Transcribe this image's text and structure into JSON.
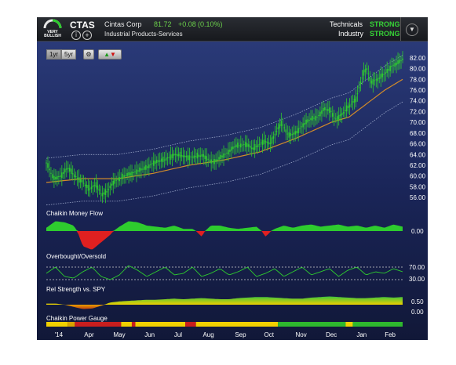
{
  "header": {
    "rating_label": "VERY BULLISH",
    "ticker": "CTAS",
    "company": "Cintas Corp",
    "price": "81.72",
    "change": "+0.08",
    "change_pct": "(0.10%)",
    "sector": "Industrial Products-Services",
    "technicals_label": "Technicals",
    "technicals_value": "STRONG",
    "industry_label": "Industry",
    "industry_value": "STRONG",
    "info_icon": "info-icon",
    "add_icon": "add-icon",
    "dropdown_icon": "chevron-down-icon"
  },
  "controls": {
    "range_1yr": "1yr",
    "range_5yr": "5yr",
    "settings_icon": "gear-icon",
    "arrows_icon": "up-down-arrows-icon"
  },
  "colors": {
    "bg": "#1a2558",
    "up": "#2ecc2e",
    "down": "#e02020",
    "sma": "#d08a2a",
    "band": "#9aa6c8"
  },
  "chart_data": [
    {
      "type": "candlestick",
      "y_ticks": [
        "82.00",
        "80.00",
        "78.00",
        "76.00",
        "74.00",
        "72.00",
        "70.00",
        "68.00",
        "66.00",
        "64.00",
        "62.00",
        "60.00",
        "58.00",
        "56.00"
      ],
      "ylim": [
        55,
        83
      ],
      "price_path": [
        [
          0,
          62.5
        ],
        [
          0.02,
          59.5
        ],
        [
          0.04,
          60
        ],
        [
          0.06,
          61.5
        ],
        [
          0.08,
          60
        ],
        [
          0.1,
          59
        ],
        [
          0.12,
          57.5
        ],
        [
          0.14,
          58.5
        ],
        [
          0.155,
          56.5
        ],
        [
          0.17,
          57
        ],
        [
          0.19,
          59
        ],
        [
          0.22,
          60
        ],
        [
          0.25,
          60.8
        ],
        [
          0.28,
          61.5
        ],
        [
          0.3,
          62.5
        ],
        [
          0.33,
          63
        ],
        [
          0.36,
          64
        ],
        [
          0.4,
          63.5
        ],
        [
          0.44,
          63.8
        ],
        [
          0.47,
          62.5
        ],
        [
          0.5,
          64
        ],
        [
          0.53,
          65.5
        ],
        [
          0.56,
          66
        ],
        [
          0.58,
          65
        ],
        [
          0.61,
          66.5
        ],
        [
          0.63,
          66
        ],
        [
          0.64,
          67.5
        ],
        [
          0.66,
          70
        ],
        [
          0.68,
          67.5
        ],
        [
          0.7,
          68
        ],
        [
          0.72,
          69.5
        ],
        [
          0.74,
          70.5
        ],
        [
          0.76,
          71
        ],
        [
          0.78,
          72.5
        ],
        [
          0.8,
          72
        ],
        [
          0.81,
          70.5
        ],
        [
          0.83,
          71.5
        ],
        [
          0.85,
          73
        ],
        [
          0.87,
          74.5
        ],
        [
          0.88,
          77
        ],
        [
          0.89,
          79
        ],
        [
          0.9,
          80
        ],
        [
          0.91,
          77.5
        ],
        [
          0.93,
          78
        ],
        [
          0.95,
          79
        ],
        [
          0.97,
          80.5
        ],
        [
          0.99,
          81.2
        ],
        [
          1,
          81.7
        ]
      ],
      "sma_path": [
        [
          0,
          58.8
        ],
        [
          0.1,
          59.5
        ],
        [
          0.2,
          59.5
        ],
        [
          0.3,
          60.5
        ],
        [
          0.4,
          62
        ],
        [
          0.5,
          63
        ],
        [
          0.6,
          64.5
        ],
        [
          0.7,
          67
        ],
        [
          0.8,
          70
        ],
        [
          0.85,
          71
        ],
        [
          0.9,
          73.5
        ],
        [
          0.95,
          76
        ],
        [
          1,
          78
        ]
      ]
    },
    {
      "type": "area",
      "title": "Chaikin Money Flow",
      "y_ticks": [
        "0.00"
      ],
      "values": [
        0.3,
        0.9,
        0.8,
        0.5,
        -0.8,
        -1,
        -0.6,
        -0.2,
        0.4,
        0.9,
        0.8,
        0.5,
        0.4,
        0.3,
        0.5,
        0.2,
        0.2,
        -0.3,
        0.5,
        0.5,
        0.3,
        0.2,
        0.3,
        0.4,
        -0.3,
        0.2,
        0.5,
        0.3,
        0.5,
        0.6,
        0.4,
        0.5,
        0.6,
        0.4,
        0.5,
        0.3,
        0.5,
        0.3,
        0.6,
        0.4
      ]
    },
    {
      "type": "line",
      "title": "Overbought/Oversold",
      "y_ticks": [
        "70.00",
        "30.00"
      ],
      "values": [
        50,
        70,
        40,
        35,
        55,
        70,
        40,
        30,
        45,
        75,
        60,
        40,
        55,
        70,
        45,
        50,
        70,
        40,
        50,
        65,
        45,
        55,
        70,
        40,
        50,
        65,
        40,
        55,
        70,
        45,
        55,
        65,
        40,
        60,
        70,
        45,
        55,
        50,
        65,
        55
      ]
    },
    {
      "type": "area",
      "title": "Rel Strength vs. SPY",
      "y_ticks": [
        "0.50",
        "0.00"
      ],
      "values": [
        0.1,
        0.1,
        0,
        -0.2,
        -0.4,
        -0.35,
        -0.1,
        0.2,
        0.3,
        0.35,
        0.4,
        0.45,
        0.45,
        0.5,
        0.55,
        0.5,
        0.55,
        0.6,
        0.55,
        0.5,
        0.5,
        0.6,
        0.65,
        0.7,
        0.7,
        0.65,
        0.6,
        0.55,
        0.55,
        0.65,
        0.7,
        0.75,
        0.7,
        0.65,
        0.6,
        0.6,
        0.65,
        0.7,
        0.65,
        0.7
      ]
    },
    {
      "type": "bar",
      "title": "Chaikin Power Gauge",
      "segments": [
        [
          "#f0d000",
          0.06
        ],
        [
          "#d8a400",
          0.02
        ],
        [
          "#c81e1e",
          0.13
        ],
        [
          "#f0d000",
          0.03
        ],
        [
          "#c81e1e",
          0.01
        ],
        [
          "#f0d000",
          0.14
        ],
        [
          "#c81e1e",
          0.03
        ],
        [
          "#f0d000",
          0.23
        ],
        [
          "#2eb82e",
          0.19
        ],
        [
          "#f0d000",
          0.02
        ],
        [
          "#2eb82e",
          0.14
        ]
      ]
    }
  ],
  "x_labels": [
    "'14",
    "Apr",
    "May",
    "Jun",
    "Jul",
    "Aug",
    "Sep",
    "Oct",
    "Nov",
    "Dec",
    "Jan",
    "Feb"
  ]
}
